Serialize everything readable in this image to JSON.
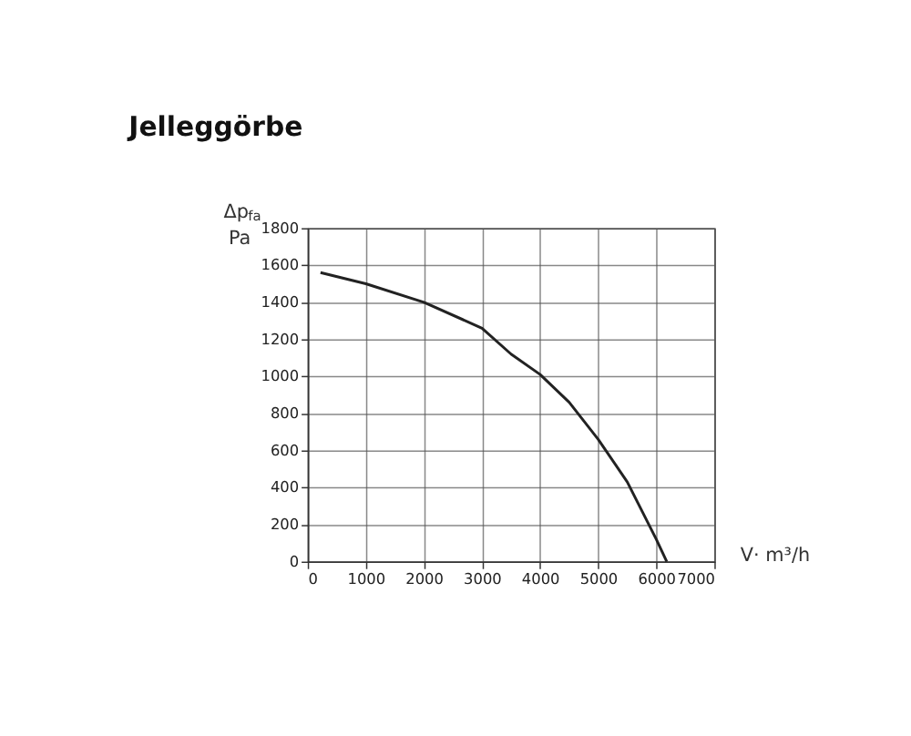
{
  "chart_data": {
    "type": "line",
    "title": "Jelleggörbe",
    "xlabel": "V· m³/h",
    "ylabel": "Δp$_{fa}$ Pa",
    "x": [
      220,
      1000,
      2000,
      3000,
      3500,
      4000,
      4500,
      5000,
      5500,
      6000,
      6180
    ],
    "series": [
      {
        "color": "#222222",
        "values": [
          1560,
          1500,
          1400,
          1260,
          1120,
          1010,
          860,
          660,
          430,
          120,
          0
        ]
      }
    ],
    "xlim": [
      0,
      7000
    ],
    "xticks": [
      0,
      1000,
      2000,
      3000,
      4000,
      5000,
      6000,
      7000
    ],
    "ylim": [
      0,
      1800
    ],
    "yticks": [
      0,
      200,
      400,
      600,
      800,
      1000,
      1200,
      1400,
      1600,
      1800
    ],
    "grid": true,
    "marker": "none",
    "line_style": "solid"
  }
}
